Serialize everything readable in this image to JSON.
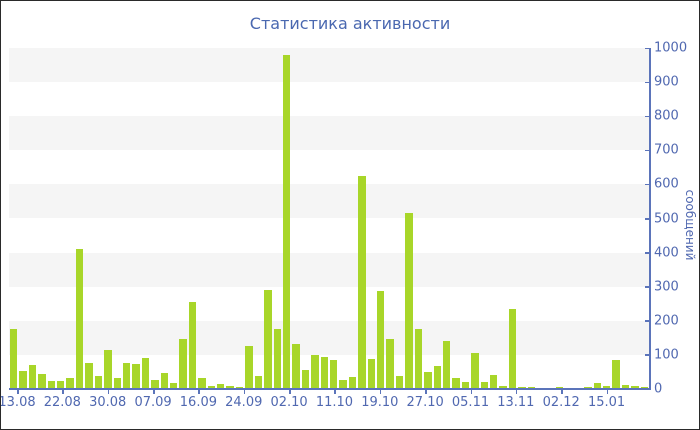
{
  "chart_data": {
    "type": "bar",
    "title": "Статистика активности",
    "ylabel": "сообщений",
    "xlabel": "",
    "ylim": [
      0,
      1000
    ],
    "y_ticks": [
      0,
      100,
      200,
      300,
      400,
      500,
      600,
      700,
      800,
      900,
      1000
    ],
    "x_tick_labels": [
      "13.08",
      "22.08",
      "30.08",
      "07.09",
      "16.09",
      "24.09",
      "02.10",
      "11.10",
      "19.10",
      "27.10",
      "05.11",
      "13.11",
      "02.12",
      "15.01"
    ],
    "values": [
      175,
      53,
      70,
      44,
      23,
      23,
      32,
      412,
      76,
      38,
      114,
      32,
      76,
      73,
      91,
      26,
      47,
      18,
      146,
      254,
      32,
      8,
      15,
      10,
      5,
      126,
      38,
      290,
      175,
      980,
      132,
      55,
      100,
      93,
      85,
      26,
      35,
      625,
      88,
      287,
      146,
      38,
      517,
      175,
      50,
      67,
      140,
      32,
      20,
      105,
      20,
      41,
      9,
      234,
      6,
      5,
      4,
      4,
      5,
      4,
      4,
      5,
      17,
      9,
      85,
      12,
      9,
      6
    ],
    "legend": "none",
    "grid": "alternating-horizontal-bands",
    "colors": {
      "bar": "#a8d629",
      "band": "#f5f5f5",
      "axis": "#5b74ba",
      "tick_text": "#5068b0",
      "title_text": "#4a68b0",
      "background": "#ffffff",
      "border": "#2a2a2a"
    }
  }
}
